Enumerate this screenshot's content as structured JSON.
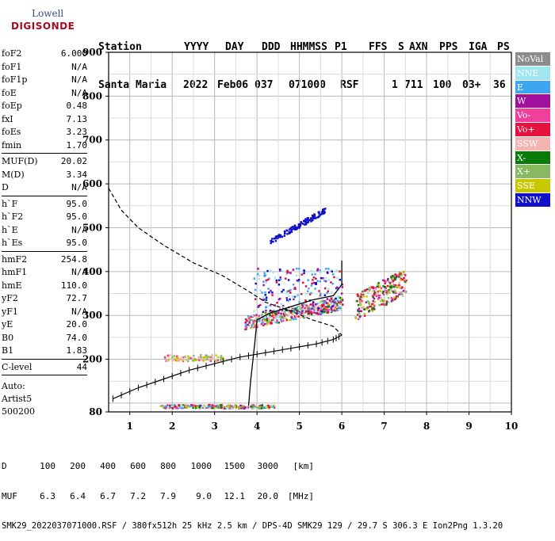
{
  "logo": {
    "top": "Lowell",
    "bottom": "DIGISONDE"
  },
  "header": {
    "line1": [
      "Station",
      "YYYY",
      "DAY",
      "DDD",
      "HHMMSS",
      "P1",
      "FFS",
      "S",
      "AXN",
      "PPS",
      "IGA",
      "PS"
    ],
    "line2": [
      "Santa Maria",
      "2022",
      "Feb06",
      "037",
      "071000",
      "RSF",
      "1",
      "711",
      "100",
      "03+",
      "36"
    ]
  },
  "params": {
    "group1": [
      {
        "name": "foF2",
        "value": "6.000"
      },
      {
        "name": "foF1",
        "value": "N/A"
      },
      {
        "name": "foF1p",
        "value": "N/A"
      },
      {
        "name": "foE",
        "value": "N/A"
      },
      {
        "name": "foEp",
        "value": "0.48"
      },
      {
        "name": "fxI",
        "value": "7.13"
      },
      {
        "name": "foEs",
        "value": "3.23"
      },
      {
        "name": "fmin",
        "value": "1.70"
      }
    ],
    "group2": [
      {
        "name": "MUF(D)",
        "value": "20.02"
      },
      {
        "name": "M(D)",
        "value": "3.34"
      },
      {
        "name": "D",
        "value": "N/A"
      }
    ],
    "group3": [
      {
        "name": "h`F",
        "value": "95.0"
      },
      {
        "name": "h`F2",
        "value": "95.0"
      },
      {
        "name": "h`E",
        "value": "N/A"
      },
      {
        "name": "h`Es",
        "value": "95.0"
      }
    ],
    "group4": [
      {
        "name": "hmF2",
        "value": "254.8"
      },
      {
        "name": "hmF1",
        "value": "N/A"
      },
      {
        "name": "hmE",
        "value": "110.0"
      },
      {
        "name": "yF2",
        "value": "72.7"
      },
      {
        "name": "yF1",
        "value": "N/A"
      },
      {
        "name": "yE",
        "value": "20.0"
      },
      {
        "name": "B0",
        "value": "74.0"
      },
      {
        "name": "B1",
        "value": "1.83"
      }
    ],
    "group5": [
      {
        "name": "C-level",
        "value": "44"
      }
    ],
    "auto": [
      "Auto:",
      "Artist5",
      "500200"
    ]
  },
  "legend": [
    {
      "label": "NoVal",
      "color": "#8c8c8c"
    },
    {
      "label": "NNE",
      "color": "#9fe6f0"
    },
    {
      "label": "E",
      "color": "#3ea5f0"
    },
    {
      "label": "W",
      "color": "#a0109c"
    },
    {
      "label": "Vo-",
      "color": "#f0409c"
    },
    {
      "label": "Vo+",
      "color": "#e8103c"
    },
    {
      "label": "SSW",
      "color": "#f4b4b4"
    },
    {
      "label": "X-",
      "color": "#087c08"
    },
    {
      "label": "X+",
      "color": "#88b860"
    },
    {
      "label": "SSE",
      "color": "#c8c800"
    },
    {
      "label": "NNW",
      "color": "#1010c8"
    }
  ],
  "footer": {
    "d_label": "D",
    "d_values": [
      "100",
      "200",
      "400",
      "600",
      "800",
      "1000",
      "1500",
      "3000",
      "[km]"
    ],
    "muf_label": "MUF",
    "muf_values": [
      "6.3",
      "6.4",
      "6.7",
      "7.2",
      "7.9",
      "9.0",
      "12.1",
      "20.0",
      "[MHz]"
    ],
    "info": "SMK29_2022037071000.RSF / 380fx512h 25 kHz 2.5 km / DPS-4D SMK29 129 / 29.7 S 306.3 E Ion2Png 1.3.20"
  },
  "chart_data": {
    "type": "scatter",
    "x_ticks": [
      "1",
      "2",
      "3",
      "4",
      "5",
      "6",
      "7",
      "8",
      "9",
      "10"
    ],
    "y_ticks": [
      "80",
      "200",
      "300",
      "400",
      "500",
      "600",
      "700",
      "800",
      "900"
    ],
    "xlim": [
      0.5,
      10
    ],
    "ylim": [
      80,
      900
    ],
    "grid": true,
    "profile_curve": [
      [
        0.5,
        590
      ],
      [
        0.8,
        540
      ],
      [
        1.2,
        500
      ],
      [
        1.8,
        460
      ],
      [
        2.5,
        420
      ],
      [
        3.2,
        390
      ],
      [
        3.8,
        355
      ],
      [
        4.2,
        330
      ],
      [
        4.8,
        310
      ],
      [
        5.3,
        290
      ],
      [
        5.8,
        275
      ],
      [
        6.0,
        255
      ]
    ],
    "trace_curve": [
      [
        0.6,
        110
      ],
      [
        1.2,
        135
      ],
      [
        1.8,
        155
      ],
      [
        2.4,
        175
      ],
      [
        3.0,
        190
      ],
      [
        3.6,
        205
      ],
      [
        4.2,
        215
      ],
      [
        4.8,
        225
      ],
      [
        5.4,
        235
      ],
      [
        5.8,
        245
      ],
      [
        6.0,
        255
      ]
    ],
    "vertical_trace": [
      [
        3.8,
        94
      ],
      [
        3.85,
        150
      ],
      [
        3.95,
        240
      ],
      [
        4.0,
        290
      ],
      [
        4.3,
        305
      ],
      [
        4.8,
        320
      ],
      [
        5.3,
        335
      ],
      [
        5.8,
        345
      ],
      [
        6.0,
        370
      ],
      [
        6.0,
        425
      ]
    ],
    "clusters": [
      {
        "name": "F2 trace",
        "x": [
          3.7,
          6.0
        ],
        "y": [
          280,
          350
        ],
        "count": 420,
        "colors": [
          "#e8103c",
          "#f0409c",
          "#a0109c",
          "#9fe6f0",
          "#3ea5f0",
          "#087c08",
          "#88b860",
          "#c8c800",
          "#f4b4b4"
        ]
      },
      {
        "name": "upper F2",
        "x": [
          3.9,
          6.0
        ],
        "y": [
          310,
          410
        ],
        "count": 220,
        "colors": [
          "#9fe6f0",
          "#3ea5f0",
          "#e8103c",
          "#a0109c",
          "#1010c8"
        ]
      },
      {
        "name": "F2 high freq",
        "x": [
          6.3,
          7.5
        ],
        "y": [
          300,
          420
        ],
        "count": 260,
        "colors": [
          "#e8103c",
          "#f0409c",
          "#c8c800",
          "#88b860",
          "#a0109c",
          "#f4b4b4",
          "#087c08"
        ]
      },
      {
        "name": "NNW multi",
        "x": [
          4.3,
          5.6
        ],
        "y": [
          465,
          550
        ],
        "count": 120,
        "colors": [
          "#1010c8"
        ]
      },
      {
        "name": "Es layer",
        "x": [
          1.7,
          4.4
        ],
        "y": [
          90,
          98
        ],
        "count": 240,
        "colors": [
          "#e8103c",
          "#f0409c",
          "#a0109c",
          "#3ea5f0",
          "#88b860",
          "#c8c800",
          "#087c08",
          "#9fe6f0"
        ]
      },
      {
        "name": "2Es layer",
        "x": [
          1.8,
          3.2
        ],
        "y": [
          198,
          212
        ],
        "count": 90,
        "colors": [
          "#f4b4b4",
          "#f0409c",
          "#c8c800",
          "#88b860"
        ]
      }
    ]
  }
}
